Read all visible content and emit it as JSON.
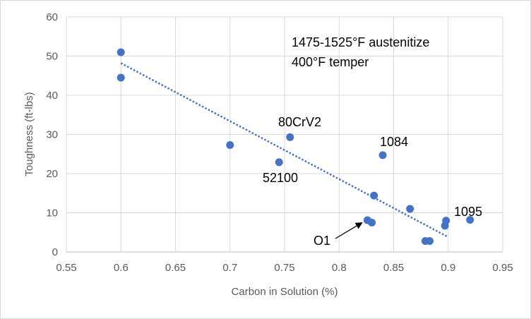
{
  "chart_data": {
    "type": "scatter",
    "title": "",
    "xlabel": "Carbon in Solution (%)",
    "ylabel": "Toughness (ft-lbs)",
    "xlim": [
      0.55,
      0.95
    ],
    "ylim": [
      0,
      60
    ],
    "xticks": [
      0.55,
      0.6,
      0.65,
      0.7,
      0.75,
      0.8,
      0.85,
      0.9,
      0.95
    ],
    "yticks": [
      0,
      10,
      20,
      30,
      40,
      50,
      60
    ],
    "xtick_labels": [
      "0.55",
      "0.6",
      "0.65",
      "0.7",
      "0.75",
      "0.8",
      "0.85",
      "0.9",
      "0.95"
    ],
    "ytick_labels": [
      "0",
      "10",
      "20",
      "30",
      "40",
      "50",
      "60"
    ],
    "grid": {
      "vertical": true,
      "horizontal": true
    },
    "legend": "none",
    "colors": {
      "points": "#4472C4",
      "trendline": "#4472C4",
      "grid": "#d9d9d9",
      "axis": "#bfbfbf",
      "border": "#d9d9d9"
    },
    "series": [
      {
        "x": [
          0.6,
          0.6,
          0.7,
          0.745,
          0.755,
          0.826,
          0.83,
          0.832,
          0.84,
          0.865,
          0.879,
          0.883,
          0.897,
          0.898,
          0.92
        ],
        "y": [
          51,
          44.5,
          27.3,
          22.9,
          29.3,
          8.1,
          7.5,
          14.4,
          24.7,
          11,
          2.8,
          2.8,
          6.7,
          8,
          8.2
        ]
      }
    ],
    "trendline": {
      "type": "linear",
      "style": "dotted",
      "x": [
        0.6,
        0.9
      ],
      "y": [
        48.2,
        3.8
      ]
    },
    "annotation_text": {
      "conditions_line1": "1475-1525°F austenitize",
      "conditions_line2": "400°F temper",
      "label_80crv2": "80CrV2",
      "label_52100": "52100",
      "label_1084": "1084",
      "label_1095": "1095",
      "label_o1": "O1"
    }
  }
}
